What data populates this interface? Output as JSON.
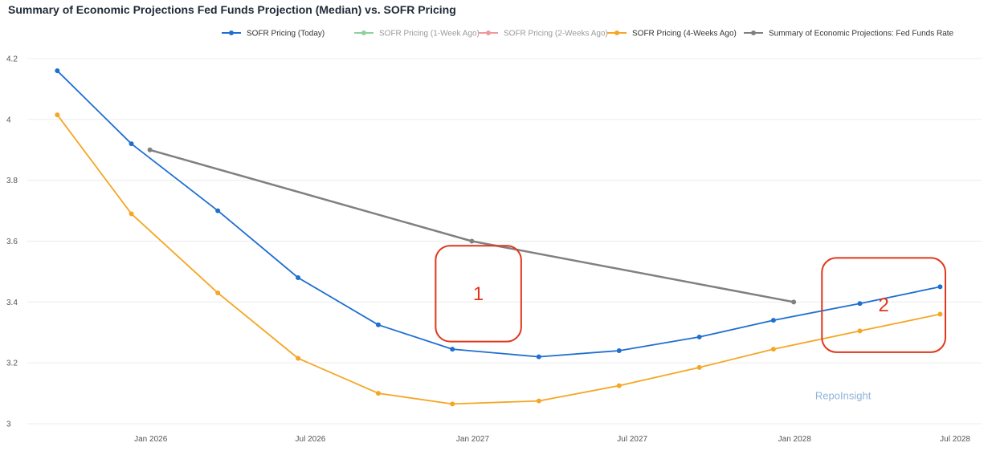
{
  "chart_data": {
    "type": "line",
    "title": "Summary of Economic Projections Fed Funds Projection (Median) vs. SOFR Pricing",
    "xlabel": "",
    "ylabel": "",
    "ylim": [
      3,
      4.2
    ],
    "yticks": [
      3,
      3.2,
      3.4,
      3.6,
      3.8,
      4,
      4.2
    ],
    "ytick_labels": [
      "3",
      "3.2",
      "3.4",
      "3.6",
      "3.8",
      "4",
      "4.2"
    ],
    "xlim": [
      "2025-08-14",
      "2028-07-31"
    ],
    "xticks": [
      {
        "date": "2026-01-01",
        "label": "Jan 2026"
      },
      {
        "date": "2026-07-01",
        "label": "Jul 2026"
      },
      {
        "date": "2027-01-01",
        "label": "Jan 2027"
      },
      {
        "date": "2027-07-01",
        "label": "Jul 2027"
      },
      {
        "date": "2028-01-01",
        "label": "Jan 2028"
      },
      {
        "date": "2028-07-01",
        "label": "Jul 2028"
      }
    ],
    "grid": true,
    "legend": "top",
    "series": [
      {
        "name": "SOFR Pricing (Today)",
        "color": "#1f6fd1",
        "visible": true,
        "x": [
          "2025-09-17",
          "2025-12-10",
          "2026-03-18",
          "2026-06-17",
          "2026-09-16",
          "2026-12-09",
          "2027-03-17",
          "2027-06-16",
          "2027-09-15",
          "2027-12-08",
          "2028-03-15",
          "2028-06-14"
        ],
        "y": [
          4.16,
          3.92,
          3.7,
          3.48,
          3.325,
          3.245,
          3.22,
          3.24,
          3.285,
          3.34,
          3.395,
          3.45
        ]
      },
      {
        "name": "SOFR Pricing (1-Week Ago)",
        "color": "#8fd19e",
        "visible": false,
        "x": [],
        "y": []
      },
      {
        "name": "SOFR Pricing (2-Weeks Ago)",
        "color": "#ef9a9a",
        "visible": false,
        "x": [],
        "y": []
      },
      {
        "name": "SOFR Pricing (4-Weeks Ago)",
        "color": "#f5a623",
        "visible": true,
        "x": [
          "2025-09-17",
          "2025-12-10",
          "2026-03-18",
          "2026-06-17",
          "2026-09-16",
          "2026-12-09",
          "2027-03-17",
          "2027-06-16",
          "2027-09-15",
          "2027-12-08",
          "2028-03-15",
          "2028-06-14"
        ],
        "y": [
          4.015,
          3.69,
          3.43,
          3.215,
          3.1,
          3.065,
          3.075,
          3.125,
          3.185,
          3.245,
          3.305,
          3.36
        ]
      },
      {
        "name": "Summary of Economic Projections: Fed Funds Rate",
        "color": "#808080",
        "visible": true,
        "x": [
          "2025-12-31",
          "2026-12-31",
          "2027-12-31"
        ],
        "y": [
          3.9,
          3.6,
          3.4
        ]
      }
    ],
    "annotations": [
      {
        "label": "1",
        "x_range": [
          "2026-11-20",
          "2027-02-25"
        ],
        "y_range": [
          3.27,
          3.585
        ]
      },
      {
        "label": "2",
        "x_range": [
          "2028-02-01",
          "2028-06-20"
        ],
        "y_range": [
          3.235,
          3.545
        ]
      }
    ],
    "watermark": "RepoInsight",
    "watermark_position": {
      "x": "2028-02-25",
      "y": 3.08
    }
  }
}
